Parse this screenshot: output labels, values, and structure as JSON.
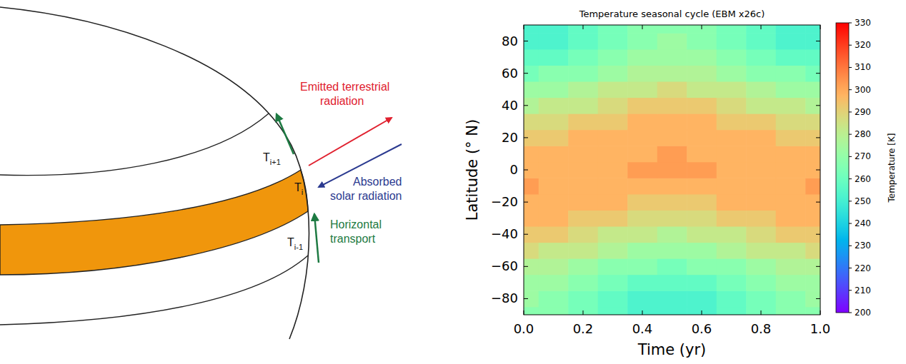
{
  "diagram": {
    "labels": [
      {
        "symbol": "T",
        "subscript": "i+1"
      },
      {
        "symbol": "T",
        "subscript": "i"
      },
      {
        "symbol": "T",
        "subscript": "i-1"
      }
    ],
    "annotations": [
      {
        "lines": [
          "Emitted terrestrial",
          "radiation"
        ]
      },
      {
        "lines": [
          "Absorbed",
          "solar radiation"
        ]
      },
      {
        "lines": [
          "Horizontal",
          "transport"
        ]
      }
    ]
  },
  "chart_data": {
    "type": "heatmap",
    "title": "Temperature seasonal cycle (EBM x26c)",
    "x_label": "Time (yr)",
    "y_label": "Latitude (° N)",
    "xlim": [
      0,
      1
    ],
    "xticks": [
      {
        "value": 0,
        "label": "0.0"
      },
      0.2,
      0.4,
      0.6,
      0.8,
      {
        "value": 1,
        "label": "1.0"
      }
    ],
    "ylim": [
      -90,
      90
    ],
    "yticks": [
      -80,
      -60,
      -40,
      -20,
      0,
      20,
      40,
      60,
      80
    ],
    "x": [
      0,
      0.1,
      0.2,
      0.3,
      0.4,
      0.5,
      0.6,
      0.7,
      0.8,
      0.9,
      1
    ],
    "y": [
      -90,
      -80,
      -70,
      -60,
      -50,
      -40,
      -30,
      -20,
      -10,
      0,
      10,
      20,
      30,
      40,
      50,
      60,
      70,
      80,
      90
    ],
    "cells": [
      [
        268,
        266,
        262,
        256,
        252,
        250,
        252,
        256,
        262,
        266,
        268
      ],
      [
        270,
        268,
        264,
        258,
        254,
        253,
        254,
        258,
        264,
        268,
        270
      ],
      [
        273,
        272,
        268,
        263,
        259,
        257,
        259,
        263,
        268,
        272,
        273
      ],
      [
        279,
        277,
        273,
        269,
        265,
        264,
        265,
        269,
        273,
        277,
        279
      ],
      [
        285,
        284,
        280,
        276,
        272,
        271,
        272,
        276,
        280,
        284,
        285
      ],
      [
        291,
        290,
        287,
        283,
        280,
        279,
        280,
        283,
        287,
        290,
        291
      ],
      [
        296,
        295,
        292,
        290,
        287,
        287,
        287,
        290,
        292,
        295,
        296
      ],
      [
        299,
        298,
        296,
        295,
        293,
        293,
        293,
        295,
        296,
        298,
        299
      ],
      [
        300,
        299,
        299,
        298,
        297,
        297,
        297,
        298,
        299,
        299,
        300
      ],
      [
        299,
        299,
        299,
        299,
        300,
        300,
        300,
        299,
        299,
        299,
        299
      ],
      [
        297,
        297,
        298,
        299,
        299,
        300,
        299,
        299,
        298,
        297,
        297
      ],
      [
        293,
        293,
        295,
        296,
        298,
        299,
        298,
        296,
        295,
        293,
        293
      ],
      [
        287,
        287,
        290,
        292,
        295,
        296,
        295,
        292,
        290,
        287,
        287
      ],
      [
        279,
        280,
        283,
        287,
        290,
        291,
        290,
        287,
        283,
        280,
        279
      ],
      [
        271,
        272,
        276,
        280,
        284,
        285,
        284,
        280,
        276,
        272,
        271
      ],
      [
        264,
        265,
        269,
        273,
        277,
        279,
        277,
        273,
        269,
        265,
        264
      ],
      [
        257,
        259,
        263,
        268,
        272,
        273,
        272,
        268,
        263,
        259,
        257
      ],
      [
        253,
        254,
        258,
        264,
        268,
        270,
        268,
        264,
        258,
        254,
        253
      ],
      [
        250,
        252,
        256,
        262,
        266,
        268,
        266,
        262,
        256,
        252,
        250
      ]
    ],
    "colorbar": {
      "label": "Temperature [K]",
      "range": [
        200,
        330
      ],
      "ticks": [
        200,
        210,
        220,
        230,
        240,
        250,
        260,
        270,
        280,
        290,
        300,
        310,
        320,
        330
      ]
    }
  }
}
